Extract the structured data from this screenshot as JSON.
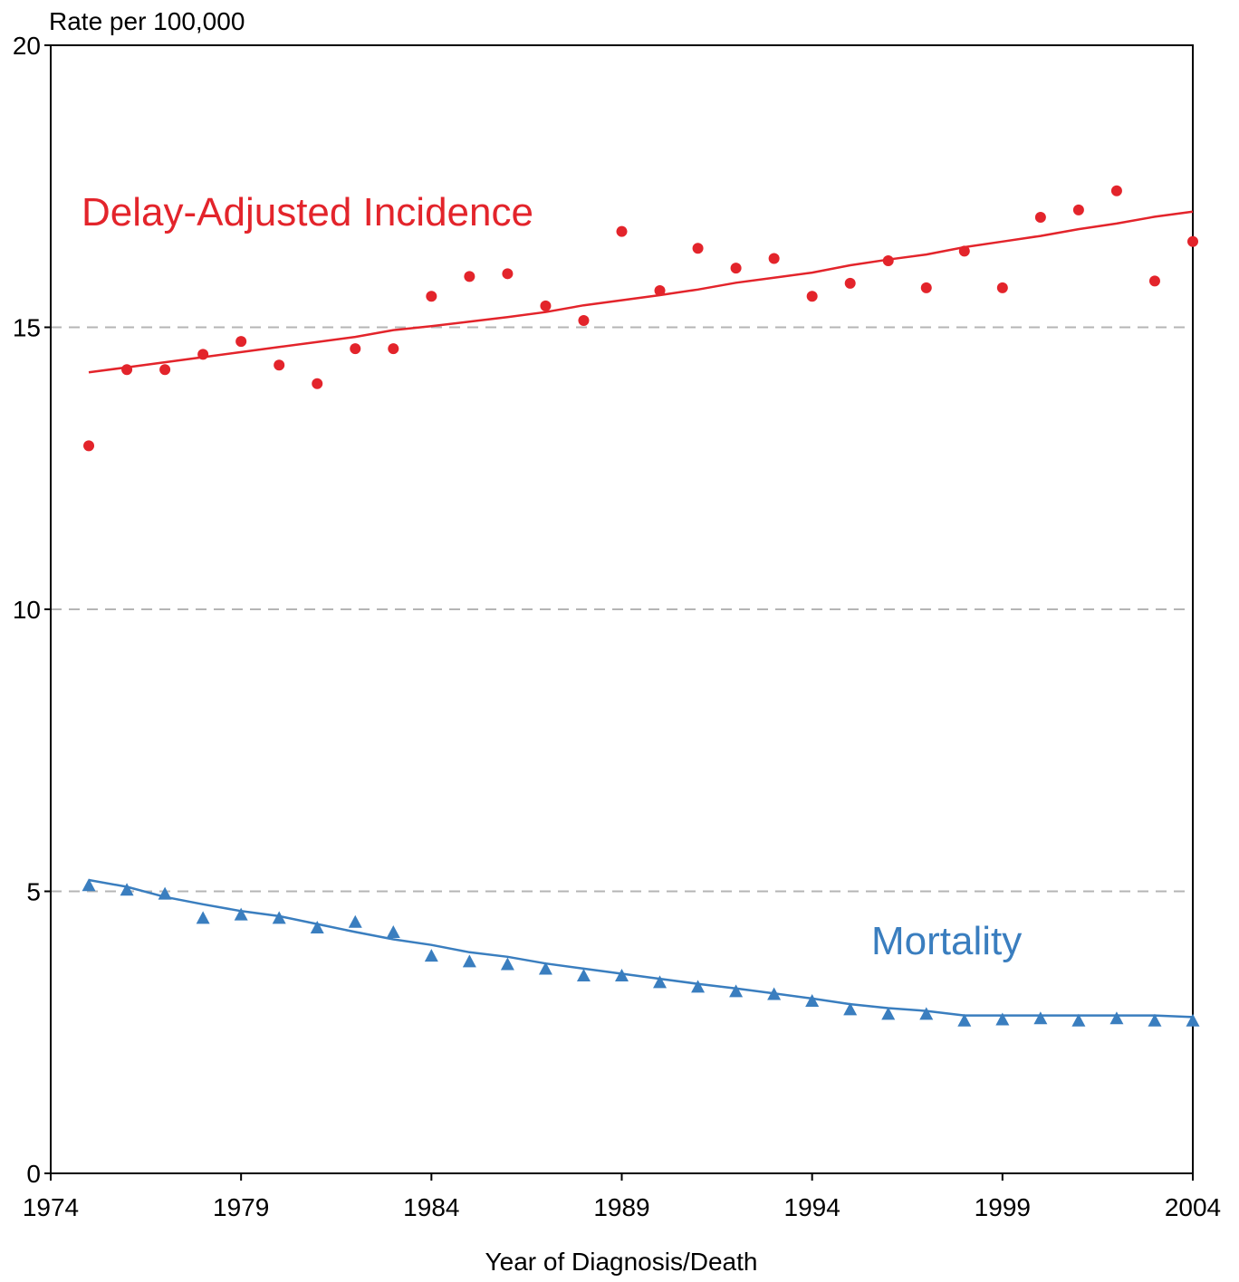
{
  "chart_data": {
    "type": "line",
    "ylabel": "Rate per 100,000",
    "xlabel": "Year of Diagnosis/Death",
    "xlim": [
      1974,
      2004
    ],
    "ylim": [
      0,
      20
    ],
    "x_ticks": [
      "1974",
      "1979",
      "1984",
      "1989",
      "1994",
      "1999",
      "2004"
    ],
    "y_ticks": [
      "0",
      "5",
      "10",
      "15",
      "20"
    ],
    "grid": "dashed horizontal at 5, 10, 15",
    "colors": {
      "incidence": "#e3242b",
      "mortality": "#3a7ebf",
      "grid": "#b5b5b5"
    },
    "series": [
      {
        "name": "Delay-Adjusted Incidence",
        "marker": "circle",
        "observed": [
          [
            1975,
            12.9
          ],
          [
            1976,
            14.25
          ],
          [
            1977,
            14.25
          ],
          [
            1978,
            14.52
          ],
          [
            1979,
            14.75
          ],
          [
            1980,
            14.33
          ],
          [
            1981,
            14.0
          ],
          [
            1982,
            14.62
          ],
          [
            1983,
            14.62
          ],
          [
            1984,
            15.55
          ],
          [
            1985,
            15.9
          ],
          [
            1986,
            15.95
          ],
          [
            1987,
            15.38
          ],
          [
            1988,
            15.12
          ],
          [
            1989,
            16.7
          ],
          [
            1990,
            15.65
          ],
          [
            1991,
            16.4
          ],
          [
            1992,
            16.05
          ],
          [
            1993,
            16.22
          ],
          [
            1994,
            15.55
          ],
          [
            1995,
            15.78
          ],
          [
            1996,
            16.18
          ],
          [
            1997,
            15.7
          ],
          [
            1998,
            16.35
          ],
          [
            1999,
            15.7
          ],
          [
            2000,
            16.95
          ],
          [
            2001,
            17.08
          ],
          [
            2002,
            17.42
          ],
          [
            2003,
            15.82
          ],
          [
            2004,
            16.52
          ]
        ],
        "fitted": [
          [
            1975,
            14.2
          ],
          [
            1976,
            14.29
          ],
          [
            1977,
            14.38
          ],
          [
            1978,
            14.47
          ],
          [
            1979,
            14.56
          ],
          [
            1980,
            14.65
          ],
          [
            1981,
            14.74
          ],
          [
            1982,
            14.83
          ],
          [
            1983,
            14.95
          ],
          [
            1984,
            15.02
          ],
          [
            1985,
            15.1
          ],
          [
            1986,
            15.18
          ],
          [
            1987,
            15.27
          ],
          [
            1988,
            15.39
          ],
          [
            1989,
            15.48
          ],
          [
            1990,
            15.57
          ],
          [
            1991,
            15.67
          ],
          [
            1992,
            15.79
          ],
          [
            1993,
            15.88
          ],
          [
            1994,
            15.97
          ],
          [
            1995,
            16.1
          ],
          [
            1996,
            16.2
          ],
          [
            1997,
            16.29
          ],
          [
            1998,
            16.42
          ],
          [
            1999,
            16.52
          ],
          [
            2000,
            16.62
          ],
          [
            2001,
            16.74
          ],
          [
            2002,
            16.84
          ],
          [
            2003,
            16.96
          ],
          [
            2004,
            17.05
          ]
        ]
      },
      {
        "name": "Mortality",
        "marker": "triangle",
        "observed": [
          [
            1975,
            5.1
          ],
          [
            1976,
            5.02
          ],
          [
            1977,
            4.95
          ],
          [
            1978,
            4.52
          ],
          [
            1979,
            4.58
          ],
          [
            1980,
            4.52
          ],
          [
            1981,
            4.35
          ],
          [
            1982,
            4.45
          ],
          [
            1983,
            4.27
          ],
          [
            1984,
            3.85
          ],
          [
            1985,
            3.75
          ],
          [
            1986,
            3.7
          ],
          [
            1987,
            3.62
          ],
          [
            1988,
            3.5
          ],
          [
            1989,
            3.5
          ],
          [
            1990,
            3.38
          ],
          [
            1991,
            3.3
          ],
          [
            1992,
            3.22
          ],
          [
            1993,
            3.17
          ],
          [
            1994,
            3.05
          ],
          [
            1995,
            2.9
          ],
          [
            1996,
            2.82
          ],
          [
            1997,
            2.82
          ],
          [
            1998,
            2.7
          ],
          [
            1999,
            2.72
          ],
          [
            2000,
            2.74
          ],
          [
            2001,
            2.7
          ],
          [
            2002,
            2.74
          ],
          [
            2003,
            2.7
          ],
          [
            2004,
            2.7
          ]
        ],
        "fitted": [
          [
            1975,
            5.2
          ],
          [
            1976,
            5.08
          ],
          [
            1977,
            4.9
          ],
          [
            1978,
            4.77
          ],
          [
            1979,
            4.65
          ],
          [
            1980,
            4.56
          ],
          [
            1981,
            4.42
          ],
          [
            1982,
            4.28
          ],
          [
            1983,
            4.15
          ],
          [
            1984,
            4.05
          ],
          [
            1985,
            3.92
          ],
          [
            1986,
            3.84
          ],
          [
            1987,
            3.72
          ],
          [
            1988,
            3.63
          ],
          [
            1989,
            3.54
          ],
          [
            1990,
            3.45
          ],
          [
            1991,
            3.36
          ],
          [
            1992,
            3.28
          ],
          [
            1993,
            3.19
          ],
          [
            1994,
            3.1
          ],
          [
            1995,
            3.0
          ],
          [
            1996,
            2.93
          ],
          [
            1997,
            2.88
          ],
          [
            1998,
            2.8
          ],
          [
            1999,
            2.8
          ],
          [
            2000,
            2.8
          ],
          [
            2001,
            2.8
          ],
          [
            2002,
            2.8
          ],
          [
            2003,
            2.8
          ],
          [
            2004,
            2.77
          ]
        ]
      }
    ]
  }
}
